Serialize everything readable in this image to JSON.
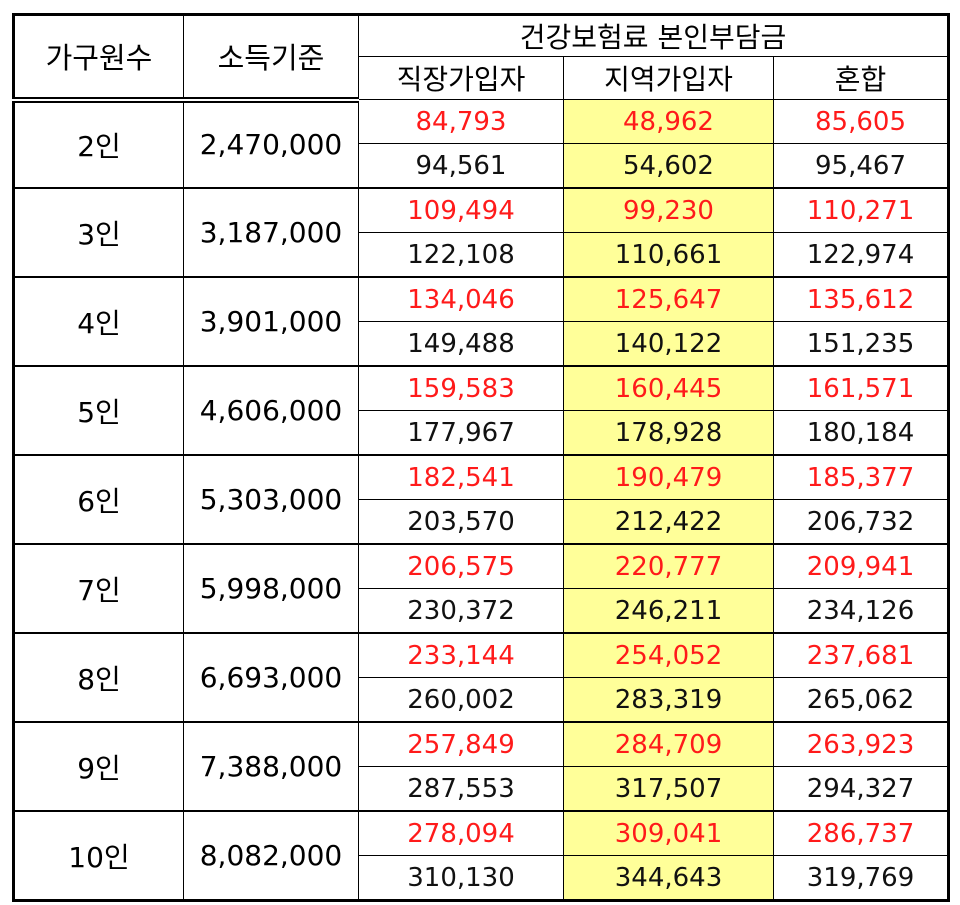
{
  "header": {
    "household": "가구원수",
    "income": "소득기준",
    "premium_group": "건강보험료 본인부담금",
    "employee": "직장가입자",
    "regional": "지역가입자",
    "mixed": "혼합"
  },
  "colors": {
    "income_text": "#2222dd",
    "upper_value_text": "#ff1a1a",
    "lower_value_text": "#111111",
    "regional_highlight": "#ffff99"
  },
  "rows": [
    {
      "size": "2인",
      "income": "2,470,000",
      "red": [
        "84,793",
        "48,962",
        "85,605"
      ],
      "black": [
        "94,561",
        "54,602",
        "95,467"
      ]
    },
    {
      "size": "3인",
      "income": "3,187,000",
      "red": [
        "109,494",
        "99,230",
        "110,271"
      ],
      "black": [
        "122,108",
        "110,661",
        "122,974"
      ]
    },
    {
      "size": "4인",
      "income": "3,901,000",
      "red": [
        "134,046",
        "125,647",
        "135,612"
      ],
      "black": [
        "149,488",
        "140,122",
        "151,235"
      ]
    },
    {
      "size": "5인",
      "income": "4,606,000",
      "red": [
        "159,583",
        "160,445",
        "161,571"
      ],
      "black": [
        "177,967",
        "178,928",
        "180,184"
      ]
    },
    {
      "size": "6인",
      "income": "5,303,000",
      "red": [
        "182,541",
        "190,479",
        "185,377"
      ],
      "black": [
        "203,570",
        "212,422",
        "206,732"
      ]
    },
    {
      "size": "7인",
      "income": "5,998,000",
      "red": [
        "206,575",
        "220,777",
        "209,941"
      ],
      "black": [
        "230,372",
        "246,211",
        "234,126"
      ]
    },
    {
      "size": "8인",
      "income": "6,693,000",
      "red": [
        "233,144",
        "254,052",
        "237,681"
      ],
      "black": [
        "260,002",
        "283,319",
        "265,062"
      ]
    },
    {
      "size": "9인",
      "income": "7,388,000",
      "red": [
        "257,849",
        "284,709",
        "263,923"
      ],
      "black": [
        "287,553",
        "317,507",
        "294,327"
      ]
    },
    {
      "size": "10인",
      "income": "8,082,000",
      "red": [
        "278,094",
        "309,041",
        "286,737"
      ],
      "black": [
        "310,130",
        "344,643",
        "319,769"
      ]
    }
  ]
}
